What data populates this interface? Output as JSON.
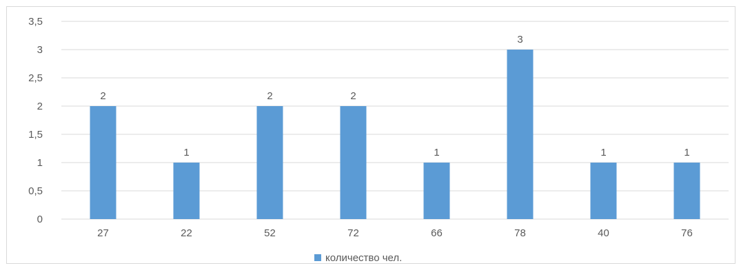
{
  "chart_data": {
    "type": "bar",
    "title": "",
    "xlabel": "",
    "ylabel": "",
    "categories": [
      "27",
      "22",
      "52",
      "72",
      "66",
      "78",
      "40",
      "76"
    ],
    "series": [
      {
        "name": "количество чел.",
        "values": [
          2,
          1,
          2,
          2,
          1,
          3,
          1,
          1
        ]
      }
    ],
    "ylim": [
      0,
      3.5
    ],
    "y_ticks": [
      "0",
      "0,5",
      "1",
      "1,5",
      "2",
      "2,5",
      "3",
      "3,5"
    ],
    "data_labels": [
      "2",
      "1",
      "2",
      "2",
      "1",
      "3",
      "1",
      "1"
    ],
    "grid": true,
    "legend_position": "bottom",
    "colors": {
      "bar": "#5B9BD5",
      "grid": "#d9d9d9",
      "text": "#595959"
    }
  }
}
